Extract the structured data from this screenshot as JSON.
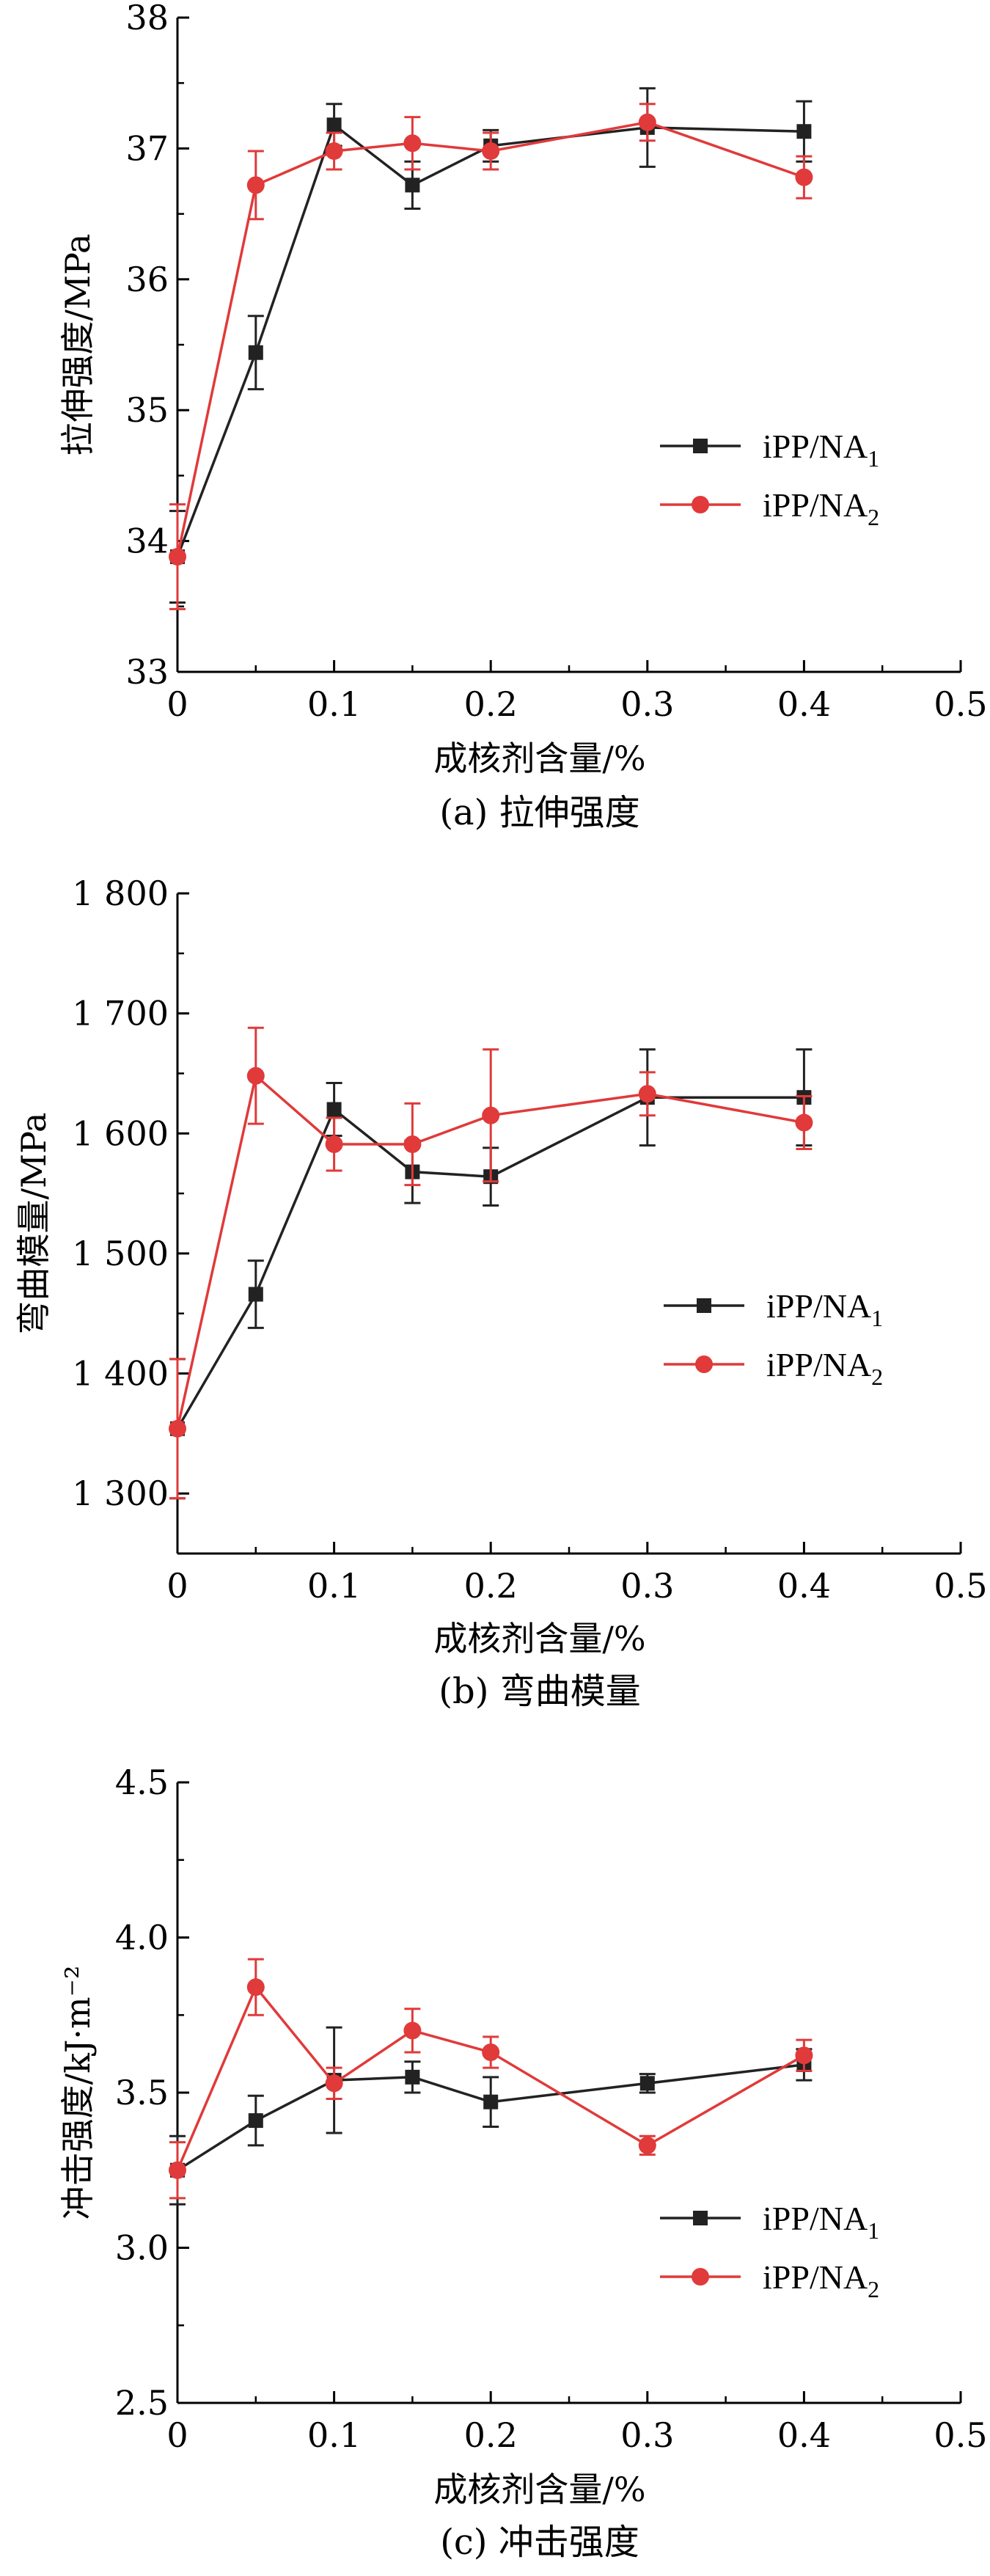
{
  "figure": {
    "series_styles": [
      {
        "color": "#222222",
        "marker": "square"
      },
      {
        "color": "#e03a3a",
        "marker": "circle"
      }
    ]
  },
  "chart_data": [
    {
      "type": "line",
      "caption": "(a) 拉伸强度",
      "xlabel": "成核剂含量/%",
      "ylabel": "拉伸强度/MPa",
      "xlim": [
        0,
        0.5
      ],
      "ylim": [
        33,
        38
      ],
      "xticks": [
        "0",
        "0.1",
        "0.2",
        "0.3",
        "0.4",
        "0.5"
      ],
      "yticks": [
        "33",
        "34",
        "35",
        "36",
        "37",
        "38"
      ],
      "legend": "right-middle",
      "series": [
        {
          "name": "iPP/NA1",
          "name_base": "iPP/NA",
          "name_sub": "1",
          "x": [
            0,
            0.05,
            0.1,
            0.15,
            0.2,
            0.3,
            0.4
          ],
          "y": [
            33.88,
            35.44,
            37.18,
            36.72,
            37.02,
            37.16,
            37.13
          ],
          "err": [
            0.35,
            0.28,
            0.16,
            0.18,
            0.12,
            0.3,
            0.23
          ]
        },
        {
          "name": "iPP/NA2",
          "name_base": "iPP/NA",
          "name_sub": "2",
          "x": [
            0,
            0.05,
            0.1,
            0.15,
            0.2,
            0.3,
            0.4
          ],
          "y": [
            33.88,
            36.72,
            36.98,
            37.04,
            36.98,
            37.2,
            36.78
          ],
          "err": [
            0.4,
            0.26,
            0.14,
            0.2,
            0.14,
            0.14,
            0.16
          ]
        }
      ]
    },
    {
      "type": "line",
      "caption": "(b) 弯曲模量",
      "xlabel": "成核剂含量/%",
      "ylabel": "弯曲模量/MPa",
      "xlim": [
        0,
        0.5
      ],
      "ylim": [
        1250,
        1800
      ],
      "xticks": [
        "0",
        "0.1",
        "0.2",
        "0.3",
        "0.4",
        "0.5"
      ],
      "yticks": [
        "1 300",
        "1 400",
        "1 500",
        "1 600",
        "1 700",
        "1 800"
      ],
      "legend": "right-middle",
      "series": [
        {
          "name": "iPP/NA1",
          "name_base": "iPP/NA",
          "name_sub": "1",
          "x": [
            0,
            0.05,
            0.1,
            0.15,
            0.2,
            0.3,
            0.4
          ],
          "y": [
            1354,
            1466,
            1620,
            1568,
            1564,
            1630,
            1630
          ],
          "err": [
            58,
            28,
            22,
            26,
            24,
            40,
            40
          ]
        },
        {
          "name": "iPP/NA2",
          "name_base": "iPP/NA",
          "name_sub": "2",
          "x": [
            0,
            0.05,
            0.1,
            0.15,
            0.2,
            0.3,
            0.4
          ],
          "y": [
            1354,
            1648,
            1591,
            1591,
            1615,
            1633,
            1609
          ],
          "err": [
            58,
            40,
            22,
            34,
            55,
            18,
            22
          ]
        }
      ]
    },
    {
      "type": "line",
      "caption": "(c) 冲击强度",
      "xlabel": "成核剂含量/%",
      "ylabel": "冲击强度/kJ·m⁻²",
      "xlim": [
        0,
        0.5
      ],
      "ylim": [
        2.5,
        4.5
      ],
      "xticks": [
        "0",
        "0.1",
        "0.2",
        "0.3",
        "0.4",
        "0.5"
      ],
      "yticks": [
        "2.5",
        "3.0",
        "3.5",
        "4.0",
        "4.5"
      ],
      "legend": "right-lower",
      "series": [
        {
          "name": "iPP/NA1",
          "name_base": "iPP/NA",
          "name_sub": "1",
          "x": [
            0,
            0.05,
            0.1,
            0.15,
            0.2,
            0.3,
            0.4
          ],
          "y": [
            3.25,
            3.41,
            3.54,
            3.55,
            3.47,
            3.53,
            3.59
          ],
          "err": [
            0.11,
            0.08,
            0.17,
            0.05,
            0.08,
            0.03,
            0.05
          ]
        },
        {
          "name": "iPP/NA2",
          "name_base": "iPP/NA",
          "name_sub": "2",
          "x": [
            0,
            0.05,
            0.1,
            0.15,
            0.2,
            0.3,
            0.4
          ],
          "y": [
            3.25,
            3.84,
            3.53,
            3.7,
            3.63,
            3.33,
            3.62
          ],
          "err": [
            0.09,
            0.09,
            0.05,
            0.07,
            0.05,
            0.03,
            0.05
          ]
        }
      ]
    }
  ]
}
